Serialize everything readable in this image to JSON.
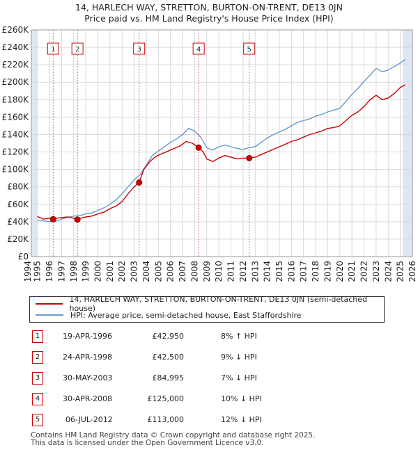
{
  "title_line1": "14, HARLECH WAY, STRETTON, BURTON-ON-TRENT, DE13 0JN",
  "title_line2": "Price paid vs. HM Land Registry's House Price Index (HPI)",
  "chart_data": {
    "type": "line",
    "title": "Price paid vs. HM Land Registry's House Price Index (HPI)",
    "xlabel": "",
    "ylabel": "",
    "xlim": [
      1994.5,
      2026.0
    ],
    "ylim": [
      0,
      260000
    ],
    "x_ticks": [
      1994,
      1995,
      1996,
      1997,
      1998,
      1999,
      2000,
      2001,
      2002,
      2003,
      2004,
      2005,
      2006,
      2007,
      2008,
      2009,
      2010,
      2011,
      2012,
      2013,
      2014,
      2015,
      2016,
      2017,
      2018,
      2019,
      2020,
      2021,
      2022,
      2023,
      2024,
      2025,
      2026
    ],
    "y_ticks": [
      0,
      20000,
      40000,
      60000,
      80000,
      100000,
      120000,
      140000,
      160000,
      180000,
      200000,
      220000,
      240000,
      260000
    ],
    "y_tick_labels": [
      "£0",
      "£20K",
      "£40K",
      "£60K",
      "£80K",
      "£100K",
      "£120K",
      "£140K",
      "£160K",
      "£180K",
      "£200K",
      "£220K",
      "£240K",
      "£260K"
    ],
    "grid": true,
    "series": [
      {
        "name": "14, HARLECH WAY, STRETTON, BURTON-ON-TRENT, DE13 0JN (semi-detached house)",
        "color": "#cc0000",
        "x": [
          1995.0,
          1995.5,
          1996.0,
          1996.3,
          1996.8,
          1997.5,
          1998.0,
          1998.3,
          1998.8,
          1999.5,
          2000.0,
          2000.5,
          2001.0,
          2001.5,
          2002.0,
          2002.5,
          2003.0,
          2003.41,
          2003.8,
          2004.3,
          2004.8,
          2005.3,
          2005.8,
          2006.3,
          2006.8,
          2007.3,
          2007.8,
          2008.33,
          2008.7,
          2009.0,
          2009.5,
          2010.0,
          2010.5,
          2011.0,
          2011.5,
          2012.0,
          2012.51,
          2013.0,
          2013.5,
          2014.0,
          2014.5,
          2015.0,
          2015.5,
          2016.0,
          2016.5,
          2017.0,
          2017.5,
          2018.0,
          2018.5,
          2019.0,
          2019.5,
          2020.0,
          2020.5,
          2021.0,
          2021.5,
          2022.0,
          2022.5,
          2023.0,
          2023.5,
          2024.0,
          2024.5,
          2025.0,
          2025.4
        ],
        "y": [
          46000,
          43000,
          44000,
          42950,
          44500,
          45500,
          44000,
          42500,
          45000,
          46500,
          49000,
          51000,
          55000,
          58000,
          63000,
          72000,
          80000,
          84995,
          100000,
          109000,
          115000,
          118000,
          121000,
          124000,
          127000,
          132000,
          130000,
          125000,
          120000,
          112000,
          109000,
          113000,
          116000,
          114000,
          112000,
          113000,
          113000,
          114000,
          117000,
          120000,
          123000,
          126000,
          129000,
          132000,
          134000,
          137000,
          140000,
          142000,
          144000,
          147000,
          148000,
          150000,
          156000,
          162000,
          166000,
          172000,
          180000,
          185000,
          180000,
          182000,
          187000,
          194000,
          197000
        ]
      },
      {
        "name": "HPI: Average price, semi-detached house, East Staffordshire",
        "color": "#6699cc",
        "x": [
          1995.0,
          1995.5,
          1996.0,
          1996.5,
          1997.0,
          1997.5,
          1998.0,
          1998.5,
          1999.0,
          1999.5,
          2000.0,
          2000.5,
          2001.0,
          2001.5,
          2002.0,
          2002.5,
          2003.0,
          2003.5,
          2004.0,
          2004.5,
          2005.0,
          2005.5,
          2006.0,
          2006.5,
          2007.0,
          2007.5,
          2008.0,
          2008.5,
          2009.0,
          2009.5,
          2010.0,
          2010.5,
          2011.0,
          2011.5,
          2012.0,
          2012.5,
          2013.0,
          2013.5,
          2014.0,
          2014.5,
          2015.0,
          2015.5,
          2016.0,
          2016.5,
          2017.0,
          2017.5,
          2018.0,
          2018.5,
          2019.0,
          2019.5,
          2020.0,
          2020.5,
          2021.0,
          2021.5,
          2022.0,
          2022.5,
          2023.0,
          2023.5,
          2024.0,
          2024.5,
          2025.0,
          2025.4
        ],
        "y": [
          42000,
          41000,
          40000,
          40500,
          43000,
          45000,
          46500,
          47000,
          49000,
          50000,
          53000,
          56000,
          60000,
          65000,
          72000,
          80000,
          88000,
          94000,
          105000,
          116000,
          121000,
          126000,
          131000,
          135000,
          140000,
          147000,
          144000,
          137000,
          125000,
          122000,
          126000,
          128000,
          126000,
          124000,
          123000,
          125000,
          126000,
          131000,
          136000,
          140000,
          143000,
          146000,
          150000,
          154000,
          156000,
          158000,
          161000,
          163000,
          166000,
          168000,
          170000,
          178000,
          186000,
          193000,
          201000,
          208000,
          216000,
          212000,
          214000,
          218000,
          222000,
          226000
        ]
      }
    ],
    "events": [
      {
        "label": "1",
        "x": 1996.3,
        "y": 42950
      },
      {
        "label": "2",
        "x": 1998.31,
        "y": 42500
      },
      {
        "label": "3",
        "x": 2003.41,
        "y": 84995
      },
      {
        "label": "4",
        "x": 2008.33,
        "y": 125000
      },
      {
        "label": "5",
        "x": 2012.51,
        "y": 113000
      }
    ]
  },
  "legend": {
    "red": "14, HARLECH WAY, STRETTON, BURTON-ON-TRENT, DE13 0JN (semi-detached house)",
    "blue": "HPI: Average price, semi-detached house, East Staffordshire"
  },
  "colors": {
    "red": "#cc0000",
    "blue": "#6699cc",
    "shade": "#dde6f2"
  },
  "sales": [
    {
      "num": "1",
      "date": "19-APR-1996",
      "price": "£42,950",
      "hpi": "8% ↑ HPI"
    },
    {
      "num": "2",
      "date": "24-APR-1998",
      "price": "£42,500",
      "hpi": "9% ↓ HPI"
    },
    {
      "num": "3",
      "date": "30-MAY-2003",
      "price": "£84,995",
      "hpi": "7% ↓ HPI"
    },
    {
      "num": "4",
      "date": "30-APR-2008",
      "price": "£125,000",
      "hpi": "10% ↓ HPI"
    },
    {
      "num": "5",
      "date": "06-JUL-2012",
      "price": "£113,000",
      "hpi": "12% ↓ HPI"
    }
  ],
  "footer_line1": "Contains HM Land Registry data © Crown copyright and database right 2025.",
  "footer_line2": "This data is licensed under the Open Government Licence v3.0."
}
